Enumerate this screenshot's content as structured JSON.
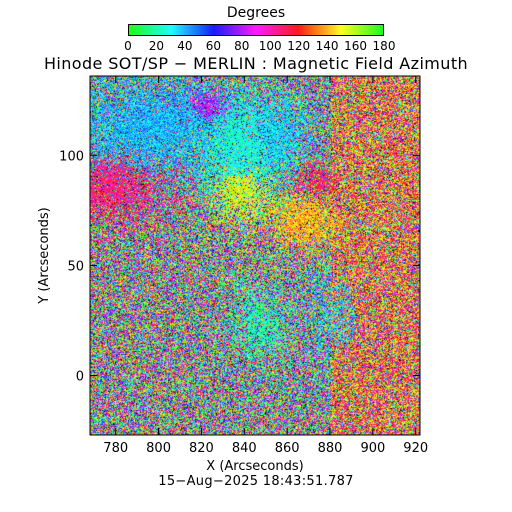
{
  "title": "Hinode SOT/SP − MERLIN : Magnetic Field Azimuth",
  "timestamp": "15−Aug−2025 18:43:51.787",
  "colorbar": {
    "title": "Degrees",
    "ticks": [
      "0",
      "20",
      "40",
      "60",
      "80",
      "100",
      "120",
      "140",
      "160",
      "180"
    ],
    "range": [
      0,
      180
    ]
  },
  "chart_data": {
    "type": "heatmap",
    "title": "Hinode SOT/SP − MERLIN : Magnetic Field Azimuth",
    "xlabel": "X (Arcseconds)",
    "ylabel": "Y (Arcseconds)",
    "xlim": [
      768,
      922
    ],
    "ylim": [
      -27,
      136
    ],
    "x_ticks": [
      "780",
      "800",
      "820",
      "840",
      "860",
      "880",
      "900",
      "920"
    ],
    "y_ticks": [
      "0",
      "50",
      "100"
    ],
    "value_label": "Degrees",
    "value_range": [
      0,
      180
    ],
    "colormap": "cyclic hue wheel (0 green → cyan → blue → magenta → red → yellow → green 180)",
    "grid": false
  }
}
